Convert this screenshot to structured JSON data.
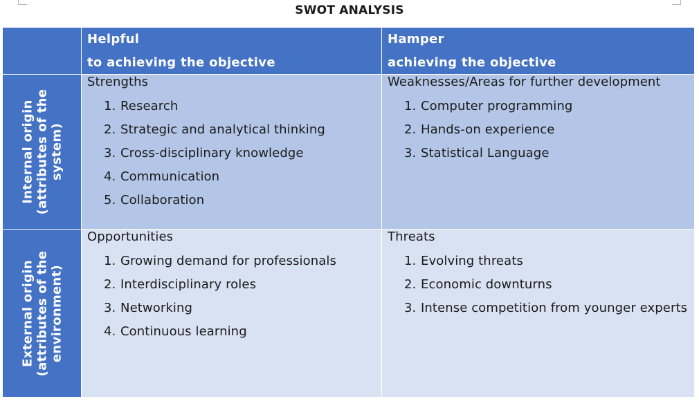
{
  "document": {
    "title": "SWOT ANALYSIS"
  },
  "columns": {
    "helpful": {
      "line1": "Helpful",
      "line2": "to achieving the objective"
    },
    "hamper": {
      "line1": "Hamper",
      "line2": "achieving the objective"
    }
  },
  "rows": {
    "internal": {
      "line1": "Internal origin",
      "line2": "(attributes of the",
      "line3": "system)"
    },
    "external": {
      "line1": "External origin",
      "line2": "(attributes of the",
      "line3": "environment)"
    }
  },
  "quadrants": {
    "strengths": {
      "label": "Strengths",
      "items": [
        {
          "num": "1.",
          "text": "Research"
        },
        {
          "num": "2.",
          "text": "Strategic and analytical thinking"
        },
        {
          "num": "3.",
          "text": "Cross-disciplinary knowledge"
        },
        {
          "num": "4.",
          "text": "Communication"
        },
        {
          "num": "5.",
          "text": "Collaboration"
        }
      ]
    },
    "weaknesses": {
      "label": "Weaknesses/Areas for further development",
      "items": [
        {
          "num": "1.",
          "text": "Computer programming"
        },
        {
          "num": "2.",
          "text": "Hands-on experience"
        },
        {
          "num": "3.",
          "text": "Statistical Language"
        }
      ]
    },
    "opportunities": {
      "label": "Opportunities",
      "items": [
        {
          "num": "1.",
          "text": "Growing demand for professionals"
        },
        {
          "num": "2.",
          "text": "Interdisciplinary roles"
        },
        {
          "num": "3.",
          "text": "Networking"
        },
        {
          "num": "4.",
          "text": "Continuous learning"
        }
      ]
    },
    "threats": {
      "label": "Threats",
      "items": [
        {
          "num": "1.",
          "text": "Evolving threats"
        },
        {
          "num": "2.",
          "text": "Economic downturns"
        },
        {
          "num": "3.",
          "text": "Intense competition from younger experts"
        }
      ]
    }
  }
}
